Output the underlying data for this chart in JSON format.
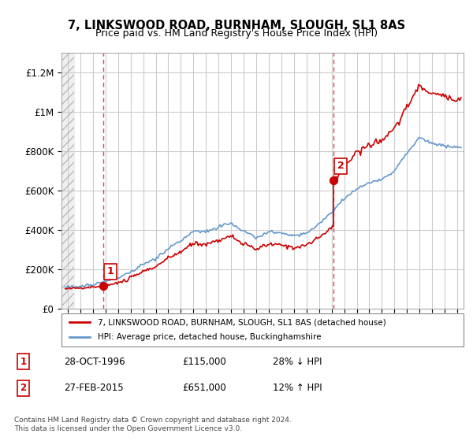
{
  "title": "7, LINKSWOOD ROAD, BURNHAM, SLOUGH, SL1 8AS",
  "subtitle": "Price paid vs. HM Land Registry's House Price Index (HPI)",
  "ylabel": "",
  "xlabel": "",
  "ylim": [
    0,
    1300000
  ],
  "xlim_start": 1993.5,
  "xlim_end": 2025.5,
  "ytick_labels": [
    "£0",
    "£200K",
    "£400K",
    "£600K",
    "£800K",
    "£1M",
    "£1.2M"
  ],
  "ytick_values": [
    0,
    200000,
    400000,
    600000,
    800000,
    1000000,
    1200000
  ],
  "sale1_year": 1996.83,
  "sale1_price": 115000,
  "sale1_label": "1",
  "sale2_year": 2015.15,
  "sale2_price": 651000,
  "sale2_label": "2",
  "legend_line1": "7, LINKSWOOD ROAD, BURNHAM, SLOUGH, SL1 8AS (detached house)",
  "legend_line2": "HPI: Average price, detached house, Buckinghamshire",
  "table_row1": [
    "1",
    "28-OCT-1996",
    "£115,000",
    "28% ↓ HPI"
  ],
  "table_row2": [
    "2",
    "27-FEB-2015",
    "£651,000",
    "12% ↑ HPI"
  ],
  "footnote": "Contains HM Land Registry data © Crown copyright and database right 2024.\nThis data is licensed under the Open Government Licence v3.0.",
  "color_red": "#cc0000",
  "color_blue": "#6699cc",
  "color_hatch": "#cccccc",
  "background_color": "#ffffff",
  "grid_color": "#cccccc"
}
